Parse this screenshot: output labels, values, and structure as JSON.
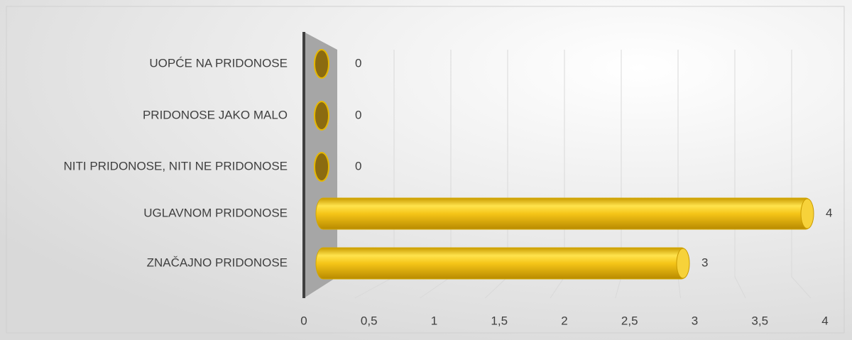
{
  "chart_data": {
    "type": "bar3d_horizontal",
    "categories": [
      "UOPĆE NA PRIDONOSE",
      "PRIDONOSE JAKO MALO",
      "NITI PRIDONOSE, NITI NE PRIDONOSE",
      "UGLAVNOM PRIDONOSE",
      "ZNAČAJNO PRIDONOSE"
    ],
    "values": [
      0,
      0,
      0,
      4,
      3
    ],
    "color": "#f5c518",
    "xlim": [
      0,
      4
    ],
    "xticks": [
      0,
      {
        "value": 0.5,
        "label": "0,5"
      },
      1,
      {
        "value": 1.5,
        "label": "1,5"
      },
      2,
      {
        "value": 2.5,
        "label": "2,5"
      },
      3,
      {
        "value": 3.5,
        "label": "3,5"
      },
      4
    ],
    "grid": true
  }
}
